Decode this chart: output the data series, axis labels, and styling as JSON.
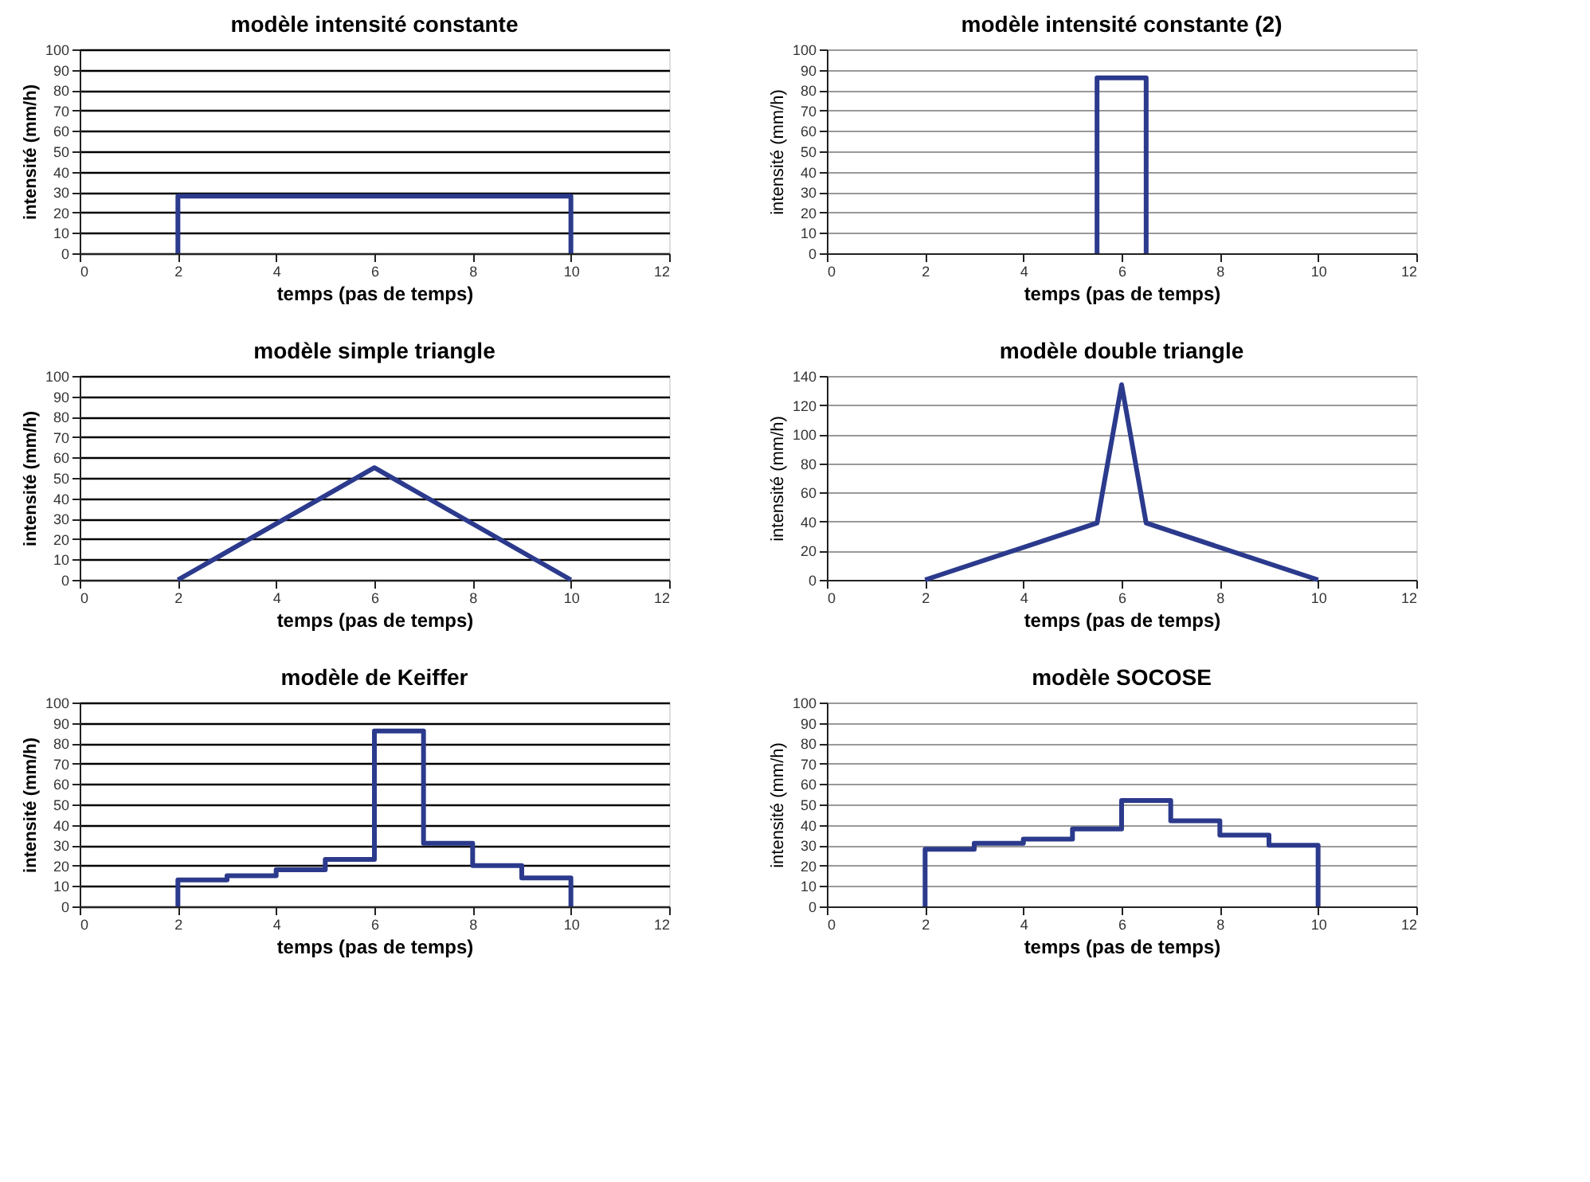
{
  "chart_data": [
    {
      "type": "line",
      "title": "modèle intensité constante",
      "xlabel": "temps (pas de temps)",
      "ylabel": "intensité (mm/h)",
      "color": "#2b3a8c",
      "x": [
        2,
        2,
        10,
        10
      ],
      "values": [
        0,
        28,
        28,
        0
      ],
      "xlim": [
        0,
        12
      ],
      "xticks": [
        0,
        2,
        4,
        6,
        8,
        10,
        12
      ],
      "ylim": [
        0,
        100
      ],
      "yticks": [
        0,
        10,
        20,
        30,
        40,
        50,
        60,
        70,
        80,
        90,
        100
      ],
      "grid": "y"
    },
    {
      "type": "line",
      "title": "modèle intensité constante (2)",
      "xlabel": "temps (pas de temps)",
      "ylabel": "intensité (mm/h)",
      "color": "#2b3a8c",
      "x": [
        5.5,
        5.5,
        6.5,
        6.5
      ],
      "values": [
        0,
        86,
        86,
        0
      ],
      "xlim": [
        0,
        12
      ],
      "xticks": [
        0,
        2,
        4,
        6,
        8,
        10,
        12
      ],
      "ylim": [
        0,
        100
      ],
      "yticks": [
        0,
        10,
        20,
        30,
        40,
        50,
        60,
        70,
        80,
        90,
        100
      ],
      "grid": "y"
    },
    {
      "type": "line",
      "title": "modèle simple triangle",
      "xlabel": "temps (pas de temps)",
      "ylabel": "intensité (mm/h)",
      "color": "#2b3a8c",
      "x": [
        2,
        6,
        10
      ],
      "values": [
        0,
        55,
        0
      ],
      "xlim": [
        0,
        12
      ],
      "xticks": [
        0,
        2,
        4,
        6,
        8,
        10,
        12
      ],
      "ylim": [
        0,
        100
      ],
      "yticks": [
        0,
        10,
        20,
        30,
        40,
        50,
        60,
        70,
        80,
        90,
        100
      ],
      "grid": "y"
    },
    {
      "type": "line",
      "title": "modèle double triangle",
      "xlabel": "temps (pas de temps)",
      "ylabel": "intensité (mm/h)",
      "color": "#2b3a8c",
      "x": [
        2,
        5.5,
        6,
        6.5,
        10
      ],
      "values": [
        0,
        39,
        134,
        39,
        0
      ],
      "xlim": [
        0,
        12
      ],
      "xticks": [
        0,
        2,
        4,
        6,
        8,
        10,
        12
      ],
      "ylim": [
        0,
        140
      ],
      "yticks": [
        0,
        20,
        40,
        60,
        80,
        100,
        120,
        140
      ],
      "grid": "y"
    },
    {
      "type": "line",
      "title": "modèle de Keiffer",
      "xlabel": "temps (pas de temps)",
      "ylabel": "intensité (mm/h)",
      "color": "#2b3a8c",
      "x": [
        2,
        2,
        3,
        3,
        4,
        4,
        5,
        5,
        6,
        6,
        7,
        7,
        8,
        8,
        9,
        9,
        10,
        10
      ],
      "values": [
        0,
        13,
        13,
        15,
        15,
        18,
        18,
        23,
        23,
        86,
        86,
        31,
        31,
        20,
        20,
        14,
        14,
        0
      ],
      "xlim": [
        0,
        12
      ],
      "xticks": [
        0,
        2,
        4,
        6,
        8,
        10,
        12
      ],
      "ylim": [
        0,
        100
      ],
      "yticks": [
        0,
        10,
        20,
        30,
        40,
        50,
        60,
        70,
        80,
        90,
        100
      ],
      "grid": "y"
    },
    {
      "type": "line",
      "title": "modèle SOCOSE",
      "xlabel": "temps (pas de temps)",
      "ylabel": "intensité (mm/h)",
      "color": "#2b3a8c",
      "x": [
        2,
        2,
        3,
        3,
        4,
        4,
        5,
        5,
        6,
        6,
        7,
        7,
        8,
        8,
        9,
        9,
        10,
        10
      ],
      "values": [
        0,
        28,
        28,
        31,
        31,
        33,
        33,
        38,
        38,
        52,
        52,
        42,
        42,
        35,
        35,
        30,
        30,
        0
      ],
      "xlim": [
        0,
        12
      ],
      "xticks": [
        0,
        2,
        4,
        6,
        8,
        10,
        12
      ],
      "ylim": [
        0,
        100
      ],
      "yticks": [
        0,
        10,
        20,
        30,
        40,
        50,
        60,
        70,
        80,
        90,
        100
      ],
      "grid": "y"
    }
  ]
}
